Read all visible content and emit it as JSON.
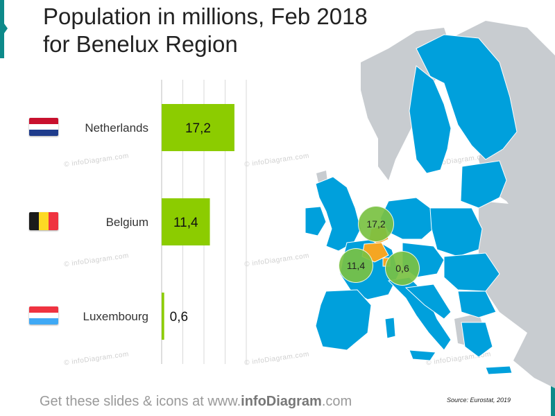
{
  "title": {
    "line1": "Population in millions, Feb 2018",
    "line2": "for Benelux Region"
  },
  "colors": {
    "accent": "#0d8a8a",
    "bar": "#8ccc00",
    "map_eu": "#00a0dc",
    "map_other": "#c8ccd0",
    "map_benelux": "#f5a623",
    "bubble": "#7ac142"
  },
  "chart_data": {
    "type": "bar",
    "orientation": "horizontal",
    "title": "Population in millions, Feb 2018 for Benelux Region",
    "categories": [
      "Netherlands",
      "Belgium",
      "Luxembourg"
    ],
    "values": [
      17.2,
      11.4,
      0.6
    ],
    "value_labels": [
      "17,2",
      "11,4",
      "0,6"
    ],
    "xlim": [
      0,
      20
    ],
    "grid": true,
    "legend": "none"
  },
  "flags": [
    {
      "country": "Netherlands",
      "icon": "netherlands-flag-icon",
      "colors": [
        "#c8102e",
        "#ffffff",
        "#1f3c8c"
      ]
    },
    {
      "country": "Belgium",
      "icon": "belgium-flag-icon",
      "colors": [
        "#1a1a1a",
        "#fdda24",
        "#ef3340"
      ]
    },
    {
      "country": "Luxembourg",
      "icon": "luxembourg-flag-icon",
      "colors": [
        "#ef3340",
        "#ffffff",
        "#3fa9f5"
      ]
    }
  ],
  "map": {
    "icon": "europe-map-icon",
    "bubbles": [
      {
        "label": "17,2",
        "country": "Netherlands"
      },
      {
        "label": "11,4",
        "country": "Belgium"
      },
      {
        "label": "0,6",
        "country": "Luxembourg"
      }
    ]
  },
  "watermark": "© infoDiagram.com",
  "footer": {
    "prefix": "Get these slides & icons at www.",
    "brand": "infoDiagram",
    "suffix": ".com"
  },
  "source": "Source: Eurostat, 2019"
}
